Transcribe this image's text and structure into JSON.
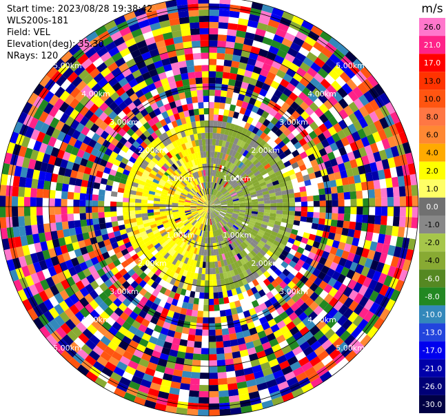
{
  "header": {
    "start_time": "Start time: 2023/08/28 19:38:42",
    "instrument": "WLS200s-181",
    "field": "Field: VEL",
    "elevation": "Elevation(deg): 35.30",
    "nrays": "NRays: 120"
  },
  "colorbar": {
    "unit": "m/s",
    "ticks": [
      "26.0",
      "21.0",
      "17.0",
      "13.0",
      "10.0",
      "8.0",
      "6.0",
      "4.0",
      "2.0",
      "1.0",
      "0.0",
      "-1.0",
      "-2.0",
      "-4.0",
      "-6.0",
      "-8.0",
      "-10.0",
      "-13.0",
      "-17.0",
      "-21.0",
      "-26.0",
      "-30.0"
    ],
    "colors": [
      "#ff77cc",
      "#ff2288",
      "#ff0000",
      "#ff3300",
      "#ff5511",
      "#ff7744",
      "#ff8833",
      "#ffaa00",
      "#ffff00",
      "#ffff66",
      "#707070",
      "#888888",
      "#a6c64a",
      "#88aa33",
      "#558822",
      "#228822",
      "#3388bb",
      "#2244dd",
      "#0000ee",
      "#0000aa",
      "#000077",
      "#000044"
    ]
  },
  "chart_data": {
    "type": "ppi",
    "field": "VEL",
    "units": "m/s",
    "nrays": 120,
    "elevation_deg": 35.3,
    "range_rings_km": [
      1,
      2,
      3,
      4,
      5
    ],
    "ring_labels": [
      "1.00km",
      "2.00km",
      "3.00km",
      "4.00km",
      "5.00km"
    ],
    "near_field_note": "positive (yellow) velocities dominate west, near-zero grey/green east within ~2 km; noise beyond"
  }
}
